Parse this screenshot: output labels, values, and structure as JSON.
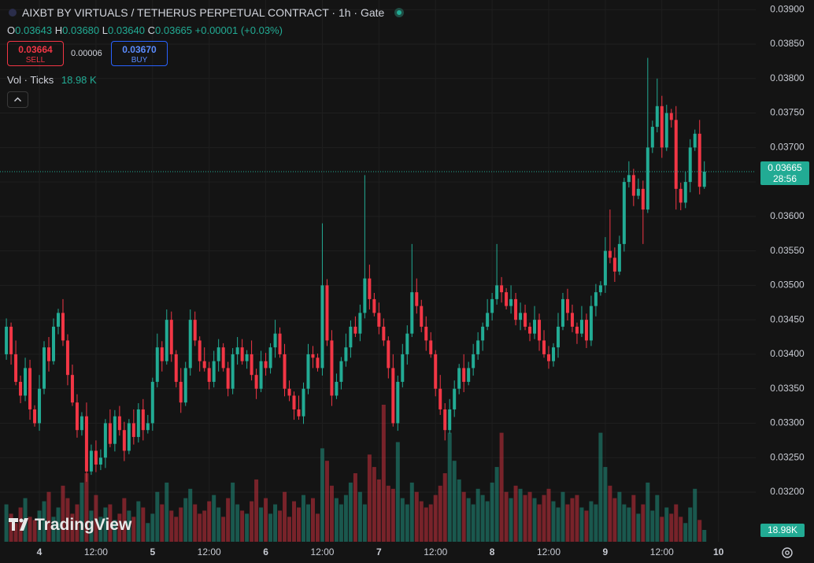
{
  "chart_data": {
    "type": "candlestick",
    "title": "AIXBT BY VIRTUALS / TETHERUS PERPETUAL CONTRACT · 1h · Gate",
    "ohlc_header": {
      "labels": [
        "O",
        "H",
        "L",
        "C"
      ],
      "values": [
        "0.03643",
        "0.03680",
        "0.03640",
        "0.03665"
      ],
      "change": "+0.00001 (+0.03%)"
    },
    "sell": {
      "price": "0.03664",
      "label": "SELL"
    },
    "spread": "0.00006",
    "buy": {
      "price": "0.03670",
      "label": "BUY"
    },
    "volume_legend": {
      "label": "Vol · Ticks",
      "value": "18.98 K"
    },
    "last_price_tag": {
      "price": "0.03665",
      "countdown": "28:56"
    },
    "volume_tag": "18.98K",
    "logo": "TradingView",
    "up_color": "#22ab94",
    "down_color": "#f23645",
    "volume_up_color": "rgba(34,171,148,0.45)",
    "volume_down_color": "rgba(242,54,69,0.45)",
    "grid": true,
    "xlim": [
      -1.35,
      158.9
    ],
    "xticks": [
      {
        "value": 7,
        "label": "4"
      },
      {
        "value": 19,
        "label": "12:00"
      },
      {
        "value": 31,
        "label": "5"
      },
      {
        "value": 43,
        "label": "12:00"
      },
      {
        "value": 55,
        "label": "6"
      },
      {
        "value": 67,
        "label": "12:00"
      },
      {
        "value": 79,
        "label": "7"
      },
      {
        "value": 91,
        "label": "12:00"
      },
      {
        "value": 103,
        "label": "8"
      },
      {
        "value": 115,
        "label": "12:00"
      },
      {
        "value": 127,
        "label": "9"
      },
      {
        "value": 139,
        "label": "12:00"
      },
      {
        "value": 151,
        "label": "10"
      }
    ],
    "ylim": [
      0.03128,
      0.03914
    ],
    "yticks": [
      {
        "value": 0.032,
        "label": "0.03200"
      },
      {
        "value": 0.0325,
        "label": "0.03250"
      },
      {
        "value": 0.033,
        "label": "0.03300"
      },
      {
        "value": 0.0335,
        "label": "0.03350"
      },
      {
        "value": 0.034,
        "label": "0.03400"
      },
      {
        "value": 0.0345,
        "label": "0.03450"
      },
      {
        "value": 0.035,
        "label": "0.03500"
      },
      {
        "value": 0.0355,
        "label": "0.03550"
      },
      {
        "value": 0.036,
        "label": "0.03600"
      },
      {
        "value": 0.0365,
        "label": "0.03650"
      },
      {
        "value": 0.037,
        "label": "0.03700"
      },
      {
        "value": 0.0375,
        "label": "0.03750"
      },
      {
        "value": 0.038,
        "label": "0.03800"
      },
      {
        "value": 0.0385,
        "label": "0.03850"
      },
      {
        "value": 0.039,
        "label": "0.03900"
      }
    ],
    "volume_lim": [
      0,
      220
    ],
    "open": [
      0.034,
      0.0344,
      0.034,
      0.0336,
      0.0334,
      0.0338,
      0.0332,
      0.033,
      0.0335,
      0.0341,
      0.0339,
      0.0344,
      0.0346,
      0.0342,
      0.0337,
      0.0333,
      0.0329,
      0.0331,
      0.0323,
      0.0326,
      0.0324,
      0.0325,
      0.033,
      0.0327,
      0.0331,
      0.0329,
      0.0326,
      0.033,
      0.0328,
      0.0332,
      0.0329,
      0.033,
      0.0336,
      0.0341,
      0.0339,
      0.0345,
      0.034,
      0.0336,
      0.0333,
      0.0338,
      0.0345,
      0.0342,
      0.0339,
      0.0338,
      0.0336,
      0.0339,
      0.0341,
      0.0338,
      0.0335,
      0.034,
      0.0341,
      0.0339,
      0.034,
      0.0337,
      0.0335,
      0.0339,
      0.0338,
      0.0341,
      0.0343,
      0.034,
      0.0335,
      0.0334,
      0.0332,
      0.0331,
      0.0335,
      0.034,
      0.03395,
      0.0338,
      0.035,
      0.0342,
      0.0334,
      0.0336,
      0.0339,
      0.0341,
      0.0344,
      0.0343,
      0.0346,
      0.0351,
      0.0348,
      0.0346,
      0.0344,
      0.0342,
      0.0338,
      0.033,
      0.0336,
      0.034,
      0.0343,
      0.0349,
      0.0347,
      0.0344,
      0.0342,
      0.034,
      0.0335,
      0.0332,
      0.0329,
      0.0332,
      0.0335,
      0.0338,
      0.0336,
      0.0338,
      0.034,
      0.0342,
      0.0344,
      0.0346,
      0.0348,
      0.035,
      0.0349,
      0.0347,
      0.0348,
      0.0345,
      0.0346,
      0.0344,
      0.0343,
      0.0345,
      0.0342,
      0.034,
      0.0339,
      0.0341,
      0.0344,
      0.0348,
      0.0346,
      0.0344,
      0.0343,
      0.0345,
      0.0342,
      0.0347,
      0.0349,
      0.035,
      0.0355,
      0.0354,
      0.0352,
      0.0356,
      0.0365,
      0.0366,
      0.0363,
      0.0364,
      0.0361,
      0.037,
      0.0373,
      0.0376,
      0.037,
      0.0375,
      0.0374,
      0.0364,
      0.0362,
      0.0365,
      0.037,
      0.0372,
      0.03643
    ],
    "high": [
      0.03452,
      0.03446,
      0.0342,
      0.03369,
      0.03395,
      0.03392,
      0.03326,
      0.0337,
      0.03419,
      0.03425,
      0.03452,
      0.03466,
      0.0348,
      0.03429,
      0.03385,
      0.03342,
      0.03316,
      0.0333,
      0.03269,
      0.03275,
      0.03262,
      0.03306,
      0.0332,
      0.03319,
      0.03325,
      0.03302,
      0.03306,
      0.0332,
      0.03329,
      0.03335,
      0.03312,
      0.03366,
      0.0343,
      0.03419,
      0.03465,
      0.03462,
      0.03406,
      0.0338,
      0.03389,
      0.03465,
      0.03462,
      0.03426,
      0.0341,
      0.03389,
      0.03405,
      0.03422,
      0.03416,
      0.03389,
      0.03409,
      0.03425,
      0.03422,
      0.03406,
      0.0342,
      0.03379,
      0.03405,
      0.03402,
      0.03416,
      0.0345,
      0.03439,
      0.03415,
      0.03362,
      0.03346,
      0.0334,
      0.03359,
      0.03415,
      0.03412,
      0.03401,
      0.0359,
      0.03509,
      0.03435,
      0.03372,
      0.03396,
      0.0343,
      0.03449,
      0.03455,
      0.03472,
      0.0366,
      0.0353,
      0.03489,
      0.03475,
      0.03452,
      0.03426,
      0.034,
      0.03369,
      0.03415,
      0.03442,
      0.0356,
      0.0351,
      0.03479,
      0.03455,
      0.03432,
      0.03406,
      0.0337,
      0.03329,
      0.03335,
      0.03362,
      0.03386,
      0.034,
      0.03389,
      0.03415,
      0.03432,
      0.03446,
      0.0348,
      0.03489,
      0.0356,
      0.03512,
      0.03496,
      0.035,
      0.03489,
      0.03475,
      0.03472,
      0.03446,
      0.0347,
      0.03459,
      0.03435,
      0.03412,
      0.03416,
      0.0346,
      0.03489,
      0.03495,
      0.03472,
      0.03446,
      0.0347,
      0.03459,
      0.03485,
      0.03502,
      0.03506,
      0.0357,
      0.0361,
      0.03555,
      0.03572,
      0.03656,
      0.0368,
      0.03669,
      0.03655,
      0.03652,
      0.0383,
      0.03739,
      0.038,
      0.03775,
      0.03762,
      0.03756,
      0.0376,
      0.03649,
      0.03665,
      0.03712,
      0.03726,
      0.0374,
      0.0368
    ],
    "low": [
      0.03392,
      0.03385,
      0.03355,
      0.03329,
      0.03332,
      0.03305,
      0.03295,
      0.03289,
      0.03342,
      0.03375,
      0.03385,
      0.03429,
      0.03412,
      0.03355,
      0.03325,
      0.03279,
      0.03282,
      0.03215,
      0.03225,
      0.03229,
      0.03232,
      0.03235,
      0.03265,
      0.03259,
      0.03282,
      0.03245,
      0.03255,
      0.03269,
      0.03272,
      0.03275,
      0.03285,
      0.03289,
      0.03352,
      0.03375,
      0.03385,
      0.03389,
      0.03352,
      0.03315,
      0.03325,
      0.03369,
      0.03412,
      0.03375,
      0.03375,
      0.03349,
      0.03352,
      0.03375,
      0.03375,
      0.03339,
      0.03342,
      0.03385,
      0.03385,
      0.03379,
      0.03362,
      0.03335,
      0.03345,
      0.03369,
      0.03372,
      0.03395,
      0.03395,
      0.03339,
      0.03332,
      0.03305,
      0.03305,
      0.03299,
      0.03342,
      0.0338,
      0.03375,
      0.03369,
      0.03412,
      0.03325,
      0.03335,
      0.03349,
      0.03382,
      0.03395,
      0.03425,
      0.03419,
      0.03452,
      0.03465,
      0.03455,
      0.03429,
      0.03412,
      0.03365,
      0.03295,
      0.03289,
      0.03352,
      0.03385,
      0.03425,
      0.03459,
      0.03432,
      0.03405,
      0.03395,
      0.03339,
      0.03312,
      0.03275,
      0.03285,
      0.03309,
      0.03342,
      0.03345,
      0.03355,
      0.03369,
      0.03392,
      0.03405,
      0.03435,
      0.03449,
      0.03472,
      0.03475,
      0.03465,
      0.03459,
      0.03442,
      0.03435,
      0.03435,
      0.03419,
      0.03422,
      0.03405,
      0.03395,
      0.03379,
      0.03382,
      0.03395,
      0.03435,
      0.03449,
      0.03432,
      0.03415,
      0.03425,
      0.03409,
      0.03412,
      0.03455,
      0.03485,
      0.03489,
      0.03532,
      0.03505,
      0.03515,
      0.03549,
      0.03642,
      0.03615,
      0.03625,
      0.0356,
      0.03605,
      0.03692,
      0.03722,
      0.03685,
      0.03695,
      0.03729,
      0.0361,
      0.03609,
      0.03612,
      0.03635,
      0.03695,
      0.03632,
      0.0364
    ],
    "close": [
      0.0344,
      0.034,
      0.0336,
      0.0334,
      0.0338,
      0.0332,
      0.033,
      0.0335,
      0.0341,
      0.0339,
      0.0344,
      0.0346,
      0.0342,
      0.0337,
      0.0333,
      0.0329,
      0.0331,
      0.0323,
      0.0326,
      0.0324,
      0.0325,
      0.033,
      0.0327,
      0.0331,
      0.0329,
      0.0326,
      0.033,
      0.0328,
      0.0332,
      0.0329,
      0.033,
      0.0336,
      0.0341,
      0.0339,
      0.0345,
      0.034,
      0.0336,
      0.0333,
      0.0338,
      0.0345,
      0.0342,
      0.0339,
      0.0338,
      0.0336,
      0.0339,
      0.0341,
      0.0338,
      0.0335,
      0.034,
      0.0341,
      0.0339,
      0.034,
      0.0337,
      0.0335,
      0.0339,
      0.0338,
      0.0341,
      0.0343,
      0.034,
      0.0335,
      0.0334,
      0.0332,
      0.0331,
      0.0335,
      0.034,
      0.03395,
      0.0338,
      0.035,
      0.0342,
      0.0334,
      0.0336,
      0.0339,
      0.0341,
      0.0344,
      0.0343,
      0.0346,
      0.0351,
      0.0348,
      0.0346,
      0.0344,
      0.0342,
      0.0338,
      0.033,
      0.0336,
      0.034,
      0.0343,
      0.0349,
      0.0347,
      0.0344,
      0.0342,
      0.034,
      0.0335,
      0.0332,
      0.0329,
      0.0332,
      0.0335,
      0.0338,
      0.0336,
      0.0338,
      0.034,
      0.0342,
      0.0344,
      0.0346,
      0.0348,
      0.035,
      0.0349,
      0.0347,
      0.0348,
      0.0345,
      0.0346,
      0.0344,
      0.0343,
      0.0345,
      0.0342,
      0.034,
      0.0339,
      0.0341,
      0.0344,
      0.0348,
      0.0346,
      0.0344,
      0.0343,
      0.0345,
      0.0342,
      0.0347,
      0.0349,
      0.035,
      0.0355,
      0.0354,
      0.0352,
      0.0356,
      0.0365,
      0.0366,
      0.0363,
      0.0364,
      0.0361,
      0.037,
      0.0373,
      0.0376,
      0.037,
      0.0375,
      0.0374,
      0.0364,
      0.0362,
      0.0365,
      0.037,
      0.0372,
      0.03643,
      0.03665
    ],
    "volume": [
      60,
      45,
      30,
      55,
      70,
      40,
      35,
      50,
      65,
      80,
      40,
      55,
      90,
      70,
      45,
      60,
      95,
      110,
      50,
      75,
      40,
      55,
      60,
      35,
      45,
      70,
      50,
      40,
      65,
      55,
      30,
      45,
      80,
      60,
      95,
      50,
      40,
      55,
      70,
      85,
      60,
      45,
      50,
      65,
      75,
      55,
      40,
      70,
      95,
      60,
      50,
      45,
      65,
      100,
      55,
      70,
      45,
      60,
      50,
      80,
      40,
      65,
      55,
      75,
      60,
      70,
      45,
      150,
      130,
      90,
      70,
      60,
      75,
      95,
      110,
      80,
      60,
      140,
      120,
      100,
      220,
      90,
      85,
      160,
      70,
      60,
      95,
      80,
      65,
      55,
      60,
      75,
      90,
      110,
      175,
      130,
      100,
      80,
      70,
      60,
      85,
      75,
      65,
      95,
      120,
      175,
      80,
      70,
      90,
      85,
      75,
      80,
      70,
      60,
      75,
      85,
      65,
      55,
      80,
      60,
      70,
      75,
      55,
      50,
      65,
      60,
      175,
      120,
      90,
      70,
      80,
      60,
      55,
      75,
      45,
      60,
      95,
      50,
      75,
      40,
      55,
      45,
      60,
      40,
      30,
      55,
      85,
      35,
      18.98
    ]
  }
}
